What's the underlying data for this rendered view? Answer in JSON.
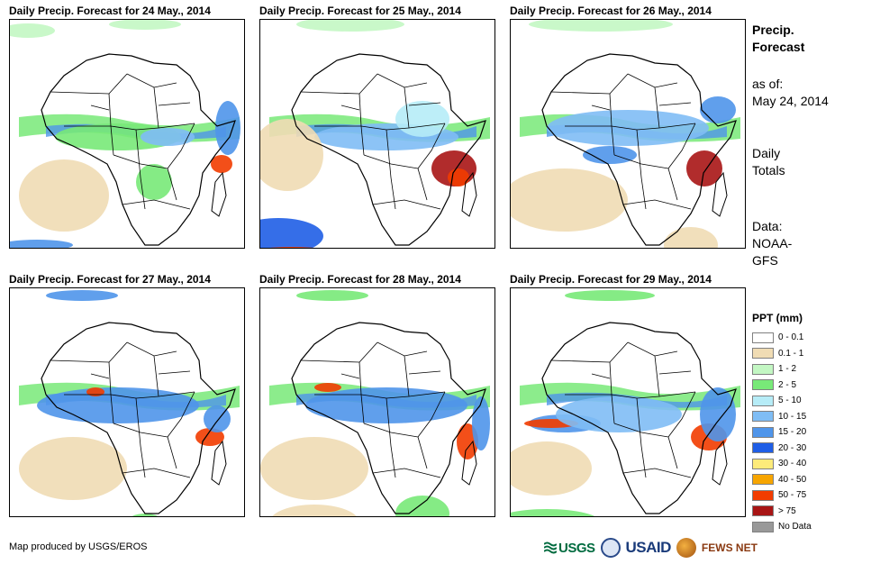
{
  "panels": [
    {
      "title": "Daily Precip. Forecast for 24 May., 2014"
    },
    {
      "title": "Daily Precip. Forecast for 25 May., 2014"
    },
    {
      "title": "Daily Precip. Forecast for 26 May., 2014"
    },
    {
      "title": "Daily Precip. Forecast for 27 May., 2014"
    },
    {
      "title": "Daily Precip. Forecast for 28 May., 2014"
    },
    {
      "title": "Daily Precip. Forecast for 29 May., 2014"
    }
  ],
  "side": {
    "title_line1": "Precip.",
    "title_line2": "Forecast",
    "asof_line1": "as of:",
    "asof_line2": "May 24, 2014",
    "daily_line1": "Daily",
    "daily_line2": "Totals",
    "data_line1": "Data:",
    "data_line2": "NOAA-",
    "data_line3": "GFS"
  },
  "legend": {
    "title": "PPT (mm)",
    "items": [
      {
        "label": "0 - 0.1",
        "color": "#ffffff"
      },
      {
        "label": "0.1 - 1",
        "color": "#f0dcb4"
      },
      {
        "label": "1 - 2",
        "color": "#c3f7c3"
      },
      {
        "label": "2 - 5",
        "color": "#78e978"
      },
      {
        "label": "5 - 10",
        "color": "#b6ecf7"
      },
      {
        "label": "10 - 15",
        "color": "#7fbdf5"
      },
      {
        "label": "15 - 20",
        "color": "#4f95ea"
      },
      {
        "label": "20 - 30",
        "color": "#1f5ee6"
      },
      {
        "label": "30 - 40",
        "color": "#fdeb7a"
      },
      {
        "label": "40 - 50",
        "color": "#f7a500"
      },
      {
        "label": "50 - 75",
        "color": "#f23c00"
      },
      {
        "label": "> 75",
        "color": "#a81515"
      },
      {
        "label": "No Data",
        "color": "#999999"
      }
    ]
  },
  "credit": "Map produced by USGS/EROS",
  "logos": {
    "usgs": "USGS",
    "usaid": "USAID",
    "fews": "FEWS NET"
  }
}
